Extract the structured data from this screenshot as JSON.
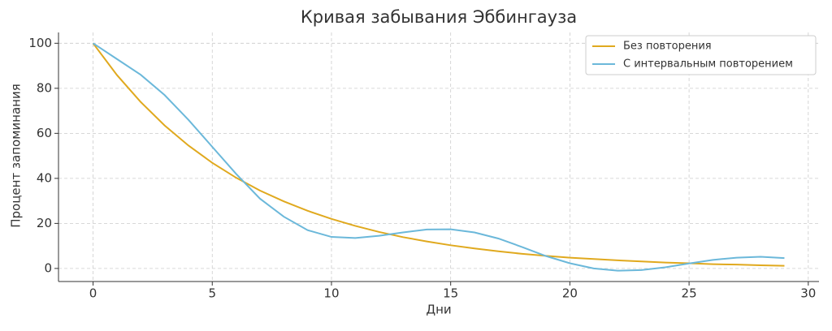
{
  "chart_data": {
    "type": "line",
    "title": "Кривая забывания Эббингауза",
    "x_label": "Дни",
    "y_label": "Процент запоминания",
    "x": [
      0,
      1,
      2,
      3,
      4,
      5,
      6,
      7,
      8,
      9,
      10,
      11,
      12,
      13,
      14,
      15,
      16,
      17,
      18,
      19,
      20,
      21,
      22,
      23,
      24,
      25,
      26,
      27,
      28,
      29
    ],
    "series": [
      {
        "name": "Без повторения",
        "color": "#e0a91e",
        "values": [
          100,
          85.9,
          73.9,
          63.5,
          54.6,
          46.9,
          40.3,
          34.6,
          29.8,
          25.6,
          22.0,
          18.9,
          16.2,
          13.9,
          12.0,
          10.3,
          8.9,
          7.6,
          6.5,
          5.6,
          4.8,
          4.2,
          3.6,
          3.1,
          2.6,
          2.3,
          1.9,
          1.7,
          1.4,
          1.2
        ]
      },
      {
        "name": "С интервальным повторением",
        "color": "#6bb8da",
        "values": [
          100,
          93,
          86,
          77,
          66,
          54,
          42,
          31,
          23,
          17,
          14,
          13.5,
          14.5,
          16,
          17.3,
          17.4,
          16,
          13.3,
          9.5,
          5.5,
          2.3,
          0,
          -1,
          -0.7,
          0.5,
          2.2,
          3.8,
          4.8,
          5.2,
          4.6
        ]
      }
    ],
    "xlim": [
      -1.45,
      30.45
    ],
    "ylim": [
      -5.8,
      104.8
    ],
    "xticks": [
      0,
      5,
      10,
      15,
      20,
      25,
      30
    ],
    "yticks": [
      0,
      20,
      40,
      60,
      80,
      100
    ],
    "grid": true,
    "legend": "upper right"
  }
}
